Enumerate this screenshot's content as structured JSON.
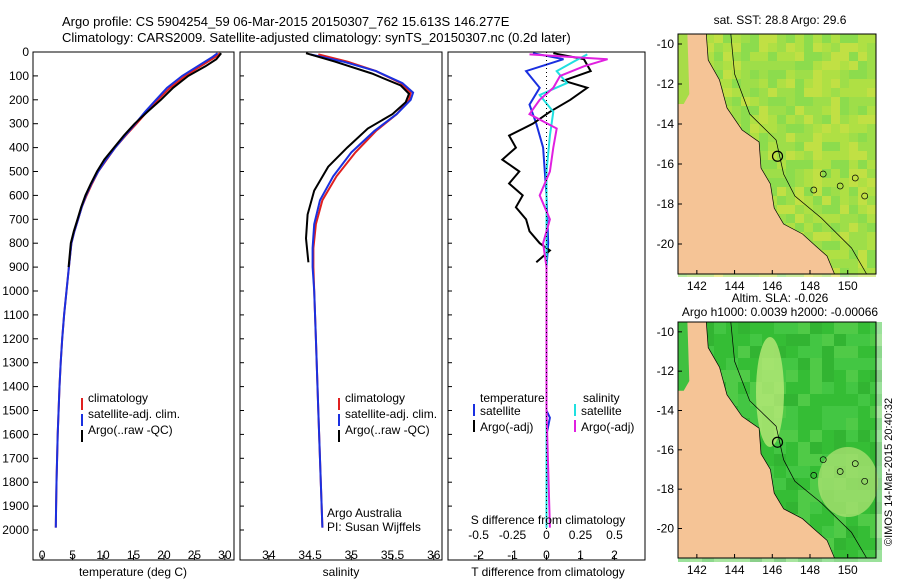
{
  "header": {
    "line1": "Argo profile: CS 5904254_59 06-Mar-2015 20150307_762 15.613S 146.277E",
    "line2": "Climatology: CARS2009. Satellite-adjusted climatology: synTS_20150307.nc (0.2d later)"
  },
  "colors": {
    "climatology": "#e02020",
    "satellite": "#1a30e0",
    "argo": "#000000",
    "sat_s": "#20e0e0",
    "argo_s": "#e020e0",
    "land": "#f5c496"
  },
  "depth_axis": {
    "min": 0,
    "max": 2000,
    "ticks": [
      0,
      100,
      200,
      300,
      400,
      500,
      600,
      700,
      800,
      900,
      1000,
      1100,
      1200,
      1300,
      1400,
      1500,
      1600,
      1700,
      1800,
      1900,
      2000
    ]
  },
  "chart_data": [
    {
      "type": "line",
      "name": "temperature-panel",
      "xlabel": "temperature (deg C)",
      "xlim": [
        -1.5,
        31.5
      ],
      "xticks": [
        0,
        5,
        10,
        15,
        20,
        25,
        30
      ],
      "legend": [
        "climatology",
        "satellite-adj. clim.",
        "Argo(..raw -QC)"
      ],
      "series": [
        {
          "name": "climatology",
          "color": "#e02020",
          "points": [
            [
              29.2,
              5
            ],
            [
              28.5,
              20
            ],
            [
              26,
              60
            ],
            [
              23.5,
              100
            ],
            [
              21,
              150
            ],
            [
              19,
              200
            ],
            [
              17.2,
              250
            ],
            [
              15.5,
              300
            ],
            [
              13.7,
              350
            ],
            [
              12,
              400
            ],
            [
              10.6,
              450
            ],
            [
              9.2,
              500
            ],
            [
              8.2,
              550
            ],
            [
              7.3,
              600
            ],
            [
              6.5,
              650
            ],
            [
              5.9,
              700
            ],
            [
              5.3,
              750
            ],
            [
              4.8,
              800
            ],
            [
              4.4,
              900
            ],
            [
              4,
              1000
            ],
            [
              3.6,
              1100
            ],
            [
              3.3,
              1200
            ],
            [
              3.05,
              1300
            ],
            [
              2.85,
              1400
            ],
            [
              2.7,
              1500
            ],
            [
              2.55,
              1600
            ],
            [
              2.45,
              1700
            ],
            [
              2.35,
              1800
            ],
            [
              2.3,
              1900
            ],
            [
              2.25,
              1990
            ]
          ]
        },
        {
          "name": "satellite-adj. clim.",
          "color": "#1a30e0",
          "points": [
            [
              28.8,
              5
            ],
            [
              28,
              20
            ],
            [
              25.5,
              60
            ],
            [
              23,
              100
            ],
            [
              20.5,
              150
            ],
            [
              18.7,
              200
            ],
            [
              16.9,
              250
            ],
            [
              15.3,
              300
            ],
            [
              13.6,
              350
            ],
            [
              12,
              400
            ],
            [
              10.5,
              450
            ],
            [
              9.2,
              500
            ],
            [
              8.1,
              550
            ],
            [
              7.2,
              600
            ],
            [
              6.5,
              650
            ],
            [
              5.9,
              700
            ],
            [
              5.3,
              750
            ],
            [
              4.8,
              800
            ],
            [
              4.4,
              900
            ],
            [
              4,
              1000
            ],
            [
              3.6,
              1100
            ],
            [
              3.3,
              1200
            ],
            [
              3.05,
              1300
            ],
            [
              2.85,
              1400
            ],
            [
              2.7,
              1500
            ],
            [
              2.55,
              1600
            ],
            [
              2.45,
              1700
            ],
            [
              2.35,
              1800
            ],
            [
              2.3,
              1900
            ],
            [
              2.25,
              1990
            ]
          ]
        },
        {
          "name": "Argo(..raw -QC)",
          "color": "#000000",
          "points": [
            [
              29.4,
              5
            ],
            [
              28.6,
              30
            ],
            [
              26.8,
              60
            ],
            [
              24,
              100
            ],
            [
              21.5,
              150
            ],
            [
              19.5,
              200
            ],
            [
              17.3,
              250
            ],
            [
              15.2,
              300
            ],
            [
              13.4,
              350
            ],
            [
              11.8,
              400
            ],
            [
              10.2,
              450
            ],
            [
              9,
              500
            ],
            [
              8,
              550
            ],
            [
              7.1,
              600
            ],
            [
              6.4,
              650
            ],
            [
              5.8,
              700
            ],
            [
              5.2,
              750
            ],
            [
              4.7,
              800
            ],
            [
              4.35,
              900
            ]
          ]
        }
      ]
    },
    {
      "type": "line",
      "name": "salinity-panel",
      "xlabel": "salinity",
      "xlim": [
        33.65,
        36.1
      ],
      "xticks": [
        34,
        34.5,
        35,
        35.5,
        36
      ],
      "legend": [
        "climatology",
        "satellite-adj. clim.",
        "Argo(..raw -QC)"
      ],
      "annotation": [
        "Argo Australia",
        "PI: Susan Wijffels"
      ],
      "series": [
        {
          "name": "climatology",
          "color": "#e02020",
          "points": [
            [
              34.6,
              10
            ],
            [
              34.95,
              40
            ],
            [
              35.3,
              80
            ],
            [
              35.6,
              130
            ],
            [
              35.72,
              170
            ],
            [
              35.7,
              200
            ],
            [
              35.55,
              260
            ],
            [
              35.3,
              330
            ],
            [
              35.05,
              420
            ],
            [
              34.82,
              520
            ],
            [
              34.65,
              620
            ],
            [
              34.57,
              720
            ],
            [
              34.54,
              820
            ],
            [
              34.54,
              900
            ],
            [
              34.55,
              1000
            ],
            [
              34.57,
              1200
            ],
            [
              34.6,
              1500
            ],
            [
              34.63,
              1800
            ],
            [
              34.65,
              1990
            ]
          ]
        },
        {
          "name": "satellite-adj. clim.",
          "color": "#1a30e0",
          "points": [
            [
              34.5,
              10
            ],
            [
              34.9,
              40
            ],
            [
              35.3,
              80
            ],
            [
              35.62,
              130
            ],
            [
              35.75,
              170
            ],
            [
              35.72,
              200
            ],
            [
              35.55,
              260
            ],
            [
              35.28,
              330
            ],
            [
              35,
              420
            ],
            [
              34.78,
              520
            ],
            [
              34.62,
              620
            ],
            [
              34.55,
              720
            ],
            [
              34.53,
              820
            ],
            [
              34.53,
              900
            ],
            [
              34.55,
              1000
            ],
            [
              34.57,
              1200
            ],
            [
              34.6,
              1500
            ],
            [
              34.63,
              1800
            ],
            [
              34.65,
              1990
            ]
          ]
        },
        {
          "name": "Argo(..raw -QC)",
          "color": "#000000",
          "points": [
            [
              34.45,
              5
            ],
            [
              34.8,
              40
            ],
            [
              35.25,
              90
            ],
            [
              35.6,
              140
            ],
            [
              35.7,
              175
            ],
            [
              35.66,
              210
            ],
            [
              35.5,
              260
            ],
            [
              35.2,
              320
            ],
            [
              34.95,
              400
            ],
            [
              34.72,
              480
            ],
            [
              34.55,
              580
            ],
            [
              34.47,
              680
            ],
            [
              34.45,
              780
            ],
            [
              34.48,
              880
            ]
          ]
        }
      ]
    },
    {
      "type": "line",
      "name": "difference-panel",
      "xlabel": "T difference from climatology",
      "x2label": "S difference from climatology",
      "xlim": [
        -2.9,
        2.9
      ],
      "xticks": [
        -2,
        -1,
        0,
        1,
        2
      ],
      "x2ticks": [
        {
          "label": "-0.5",
          "v": -2
        },
        {
          "label": "-0.25",
          "v": -1
        },
        {
          "label": "0",
          "v": 0
        },
        {
          "label": "0.25",
          "v": 1
        },
        {
          "label": "0.5",
          "v": 2
        }
      ],
      "legend_titles": [
        "temperature",
        "salinity"
      ],
      "legend_t": [
        "satellite",
        "Argo(-adj)"
      ],
      "legend_s": [
        "satellite",
        "Argo(-adj)"
      ],
      "series": [
        {
          "name": "T satellite",
          "color": "#1a30e0",
          "points": [
            [
              -0.4,
              5
            ],
            [
              0.5,
              30
            ],
            [
              -0.6,
              80
            ],
            [
              -0.2,
              150
            ],
            [
              -0.5,
              220
            ],
            [
              -0.3,
              300
            ],
            [
              -0.1,
              400
            ],
            [
              0,
              600
            ],
            [
              0.05,
              800
            ],
            [
              0,
              900
            ],
            [
              0,
              1200
            ],
            [
              0,
              1500
            ],
            [
              0.1,
              1530
            ],
            [
              0,
              1600
            ],
            [
              0,
              1990
            ]
          ]
        },
        {
          "name": "T Argo(-adj)",
          "color": "#000000",
          "points": [
            [
              0.2,
              5
            ],
            [
              1.1,
              30
            ],
            [
              1.3,
              80
            ],
            [
              0.5,
              120
            ],
            [
              1.2,
              150
            ],
            [
              0.7,
              200
            ],
            [
              0.1,
              250
            ],
            [
              -0.4,
              300
            ],
            [
              -1.1,
              350
            ],
            [
              -0.9,
              400
            ],
            [
              -1.3,
              450
            ],
            [
              -0.8,
              500
            ],
            [
              -1.1,
              550
            ],
            [
              -0.7,
              600
            ],
            [
              -0.9,
              650
            ],
            [
              -0.6,
              700
            ],
            [
              -0.5,
              750
            ],
            [
              -0.2,
              800
            ],
            [
              0.1,
              830
            ],
            [
              -0.3,
              880
            ]
          ]
        },
        {
          "name": "S satellite",
          "color": "#20e0e0",
          "points": [
            [
              1.2,
              10
            ],
            [
              0.8,
              40
            ],
            [
              0.3,
              80
            ],
            [
              0.6,
              130
            ],
            [
              -0.2,
              180
            ],
            [
              0.2,
              250
            ],
            [
              0.1,
              350
            ],
            [
              0,
              500
            ],
            [
              0,
              800
            ],
            [
              0,
              1200
            ],
            [
              0,
              1990
            ]
          ]
        },
        {
          "name": "S Argo(-adj)",
          "color": "#e020e0",
          "points": [
            [
              -0.5,
              10
            ],
            [
              1.8,
              30
            ],
            [
              1.1,
              60
            ],
            [
              0.4,
              100
            ],
            [
              0.2,
              150
            ],
            [
              -0.2,
              200
            ],
            [
              -0.5,
              260
            ],
            [
              0.3,
              320
            ],
            [
              0.2,
              400
            ],
            [
              0.1,
              500
            ],
            [
              -0.2,
              600
            ],
            [
              0.1,
              700
            ],
            [
              -0.1,
              800
            ],
            [
              0,
              900
            ],
            [
              0,
              1500
            ],
            [
              0.1,
              1990
            ]
          ]
        }
      ]
    },
    {
      "type": "heatmap",
      "name": "sst-map",
      "title": "sat. SST: 28.8 Argo: 29.6",
      "xticks": [
        "142",
        "144",
        "146",
        "148",
        "150"
      ],
      "yticks": [
        "-10",
        "-12",
        "-14",
        "-16",
        "-18",
        "-20"
      ],
      "xlim": [
        141,
        151.5
      ],
      "ylim": [
        -21.5,
        -9.5
      ],
      "marker": [
        146.277,
        -15.613
      ]
    },
    {
      "type": "heatmap",
      "name": "sla-map",
      "title": [
        "Altim. SLA: -0.026",
        "Argo h1000: 0.0039 h2000: -0.00066"
      ],
      "xticks": [
        "142",
        "144",
        "146",
        "148",
        "150"
      ],
      "yticks": [
        "-10",
        "-12",
        "-14",
        "-16",
        "-18",
        "-20"
      ],
      "xlim": [
        141,
        151.5
      ],
      "ylim": [
        -21.5,
        -9.5
      ],
      "marker": [
        146.277,
        -15.613
      ]
    }
  ],
  "watermark": "©IMOS 14-Mar-2015 20:40:32"
}
